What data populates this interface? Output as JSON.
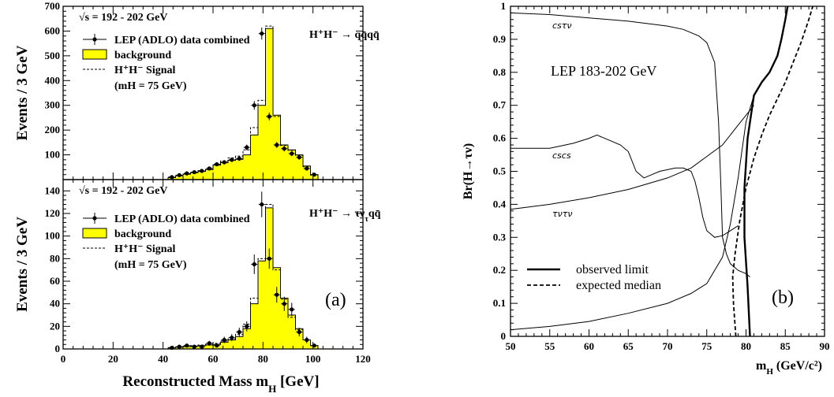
{
  "chart_data": [
    {
      "type": "bar",
      "panel": "top",
      "ylabel": "Events / 3 GeV",
      "ylim": [
        0,
        700
      ],
      "yticks": [
        0,
        100,
        200,
        300,
        400,
        500,
        600,
        700
      ],
      "xlim": [
        0,
        120
      ],
      "sqrt_s_label": "√s = 192 - 202 GeV",
      "channel_label": "H⁺H⁻ → qq̄qq̄",
      "legend": [
        "LEP (ADLO) data combined",
        "background",
        "H⁺H⁻ Signal",
        "(mH = 75 GeV)"
      ],
      "bins": [
        42,
        45,
        48,
        51,
        54,
        57,
        60,
        63,
        66,
        69,
        72,
        75,
        78,
        81,
        84,
        87,
        90,
        93,
        96,
        99
      ],
      "background": [
        8,
        15,
        22,
        28,
        33,
        40,
        58,
        68,
        78,
        82,
        100,
        180,
        300,
        610,
        260,
        140,
        120,
        100,
        55,
        20
      ],
      "signal": [
        10,
        16,
        24,
        30,
        36,
        45,
        62,
        75,
        88,
        95,
        120,
        210,
        320,
        620,
        255,
        138,
        118,
        98,
        52,
        18
      ],
      "data": [
        {
          "x": 43.5,
          "y": 10
        },
        {
          "x": 46.5,
          "y": 18
        },
        {
          "x": 49.5,
          "y": 25
        },
        {
          "x": 52.5,
          "y": 30
        },
        {
          "x": 55.5,
          "y": 35
        },
        {
          "x": 58.5,
          "y": 45
        },
        {
          "x": 61.5,
          "y": 62
        },
        {
          "x": 64.5,
          "y": 70
        },
        {
          "x": 67.5,
          "y": 80
        },
        {
          "x": 70.5,
          "y": 85
        },
        {
          "x": 73.5,
          "y": 130
        },
        {
          "x": 76.5,
          "y": 300
        },
        {
          "x": 79.5,
          "y": 590
        },
        {
          "x": 82.5,
          "y": 255
        },
        {
          "x": 85.5,
          "y": 140
        },
        {
          "x": 88.5,
          "y": 125
        },
        {
          "x": 91.5,
          "y": 105
        },
        {
          "x": 94.5,
          "y": 90
        },
        {
          "x": 97.5,
          "y": 45
        },
        {
          "x": 100.5,
          "y": 20
        }
      ]
    },
    {
      "type": "bar",
      "panel": "bottom",
      "ylabel": "Events / 3 GeV",
      "xlabel": "Reconstructed Mass m",
      "xlabel_sub": "H",
      "xlabel_unit": " [GeV]",
      "ylim": [
        0,
        150
      ],
      "yticks": [
        0,
        20,
        40,
        60,
        80,
        100,
        120,
        140
      ],
      "xlim": [
        0,
        120
      ],
      "xticks": [
        0,
        20,
        40,
        60,
        80,
        100,
        120
      ],
      "sqrt_s_label": "√s = 192 - 202 GeV",
      "channel_label": "H⁺H⁻ → τν",
      "channel_label_sub": "τ",
      "channel_label_tail": "qq̄",
      "legend": [
        "LEP (ADLO) data combined",
        "background",
        "H⁺H⁻ Signal",
        "(mH = 75 GeV)"
      ],
      "panel_tag": "(a)",
      "bins": [
        42,
        45,
        48,
        51,
        54,
        57,
        60,
        63,
        66,
        69,
        72,
        75,
        78,
        81,
        84,
        87,
        90,
        93,
        96,
        99
      ],
      "background": [
        1,
        1.5,
        2,
        2.5,
        3,
        3.5,
        4,
        6,
        8,
        11,
        18,
        40,
        78,
        125,
        72,
        45,
        30,
        18,
        8,
        3
      ],
      "signal": [
        1.2,
        1.8,
        2.3,
        3,
        3.5,
        4.2,
        5,
        7,
        9,
        13,
        22,
        45,
        80,
        128,
        70,
        44,
        28,
        17,
        8,
        3
      ],
      "data": [
        {
          "x": 43.5,
          "y": 1
        },
        {
          "x": 46.5,
          "y": 2
        },
        {
          "x": 49.5,
          "y": 3
        },
        {
          "x": 52.5,
          "y": 2
        },
        {
          "x": 55.5,
          "y": 2
        },
        {
          "x": 58.5,
          "y": 5
        },
        {
          "x": 61.5,
          "y": 3
        },
        {
          "x": 64.5,
          "y": 8
        },
        {
          "x": 67.5,
          "y": 10
        },
        {
          "x": 70.5,
          "y": 15
        },
        {
          "x": 73.5,
          "y": 20
        },
        {
          "x": 76.5,
          "y": 75
        },
        {
          "x": 79.5,
          "y": 128
        },
        {
          "x": 82.5,
          "y": 80
        },
        {
          "x": 85.5,
          "y": 48
        },
        {
          "x": 88.5,
          "y": 40
        },
        {
          "x": 91.5,
          "y": 35
        },
        {
          "x": 94.5,
          "y": 15
        },
        {
          "x": 97.5,
          "y": 8
        },
        {
          "x": 100.5,
          "y": 3
        }
      ]
    },
    {
      "type": "line",
      "panel": "right",
      "ylabel": "Br(H→τν)",
      "xlabel": "m",
      "xlabel_sub": "H",
      "xlabel_unit": " (GeV/c²)",
      "xlim": [
        50,
        90
      ],
      "ylim": [
        0,
        1
      ],
      "xticks": [
        50,
        55,
        60,
        65,
        70,
        75,
        80,
        85,
        90
      ],
      "yticks": [
        0,
        0.1,
        0.2,
        0.3,
        0.4,
        0.5,
        0.6,
        0.7,
        0.8,
        0.9,
        1
      ],
      "ytick_labels": [
        "0",
        "0.1",
        "0.2",
        "0.3",
        "0.4",
        "0.5",
        "0.6",
        "0.7",
        "0.8",
        "0.9",
        "1"
      ],
      "annotation": "LEP 183-202 GeV",
      "panel_tag": "(b)",
      "legend": [
        "observed limit",
        "expected median"
      ],
      "series": [
        {
          "label": "csτν",
          "points": [
            [
              50,
              0.98
            ],
            [
              55,
              0.975
            ],
            [
              60,
              0.965
            ],
            [
              65,
              0.955
            ],
            [
              70,
              0.94
            ],
            [
              72,
              0.93
            ],
            [
              74,
              0.91
            ],
            [
              75,
              0.89
            ],
            [
              76,
              0.83
            ],
            [
              76.5,
              0.65
            ],
            [
              76.8,
              0.45
            ],
            [
              77,
              0.3
            ],
            [
              77.5,
              0.25
            ],
            [
              78,
              0.22
            ],
            [
              79,
              0.2
            ],
            [
              80,
              0.19
            ],
            [
              80.5,
              0.18
            ]
          ]
        },
        {
          "label": "cscs",
          "points": [
            [
              50,
              0.57
            ],
            [
              55,
              0.57
            ],
            [
              58,
              0.585
            ],
            [
              60,
              0.6
            ],
            [
              61,
              0.61
            ],
            [
              62,
              0.6
            ],
            [
              64,
              0.58
            ],
            [
              65,
              0.56
            ],
            [
              66,
              0.5
            ],
            [
              67,
              0.48
            ],
            [
              68,
              0.49
            ],
            [
              69,
              0.5
            ],
            [
              71,
              0.51
            ],
            [
              72,
              0.51
            ],
            [
              73,
              0.5
            ],
            [
              73.5,
              0.47
            ],
            [
              74,
              0.42
            ],
            [
              74.5,
              0.36
            ],
            [
              75,
              0.32
            ],
            [
              76,
              0.3
            ],
            [
              77,
              0.305
            ],
            [
              78,
              0.32
            ],
            [
              79,
              0.335
            ]
          ]
        },
        {
          "label": "τντν",
          "points": [
            [
              50,
              0.385
            ],
            [
              55,
              0.4
            ],
            [
              60,
              0.42
            ],
            [
              65,
              0.445
            ],
            [
              70,
              0.48
            ],
            [
              73,
              0.51
            ],
            [
              75,
              0.545
            ],
            [
              77,
              0.58
            ],
            [
              78,
              0.61
            ],
            [
              79,
              0.64
            ],
            [
              80,
              0.67
            ],
            [
              81,
              0.7
            ]
          ]
        },
        {
          "label": "",
          "points": [
            [
              50,
              0.02
            ],
            [
              55,
              0.03
            ],
            [
              60,
              0.045
            ],
            [
              65,
              0.07
            ],
            [
              70,
              0.1
            ],
            [
              73,
              0.13
            ],
            [
              75,
              0.16
            ],
            [
              77,
              0.24
            ],
            [
              78,
              0.34
            ],
            [
              79,
              0.48
            ],
            [
              80,
              0.65
            ],
            [
              81,
              0.73
            ],
            [
              82,
              0.77
            ],
            [
              83,
              0.8
            ],
            [
              84,
              0.85
            ],
            [
              84.5,
              0.9
            ],
            [
              85,
              0.96
            ],
            [
              85.3,
              1.0
            ]
          ]
        }
      ],
      "observed_limit": [
        [
          80.5,
          0.0
        ],
        [
          80.2,
          0.15
        ],
        [
          79.8,
          0.3
        ],
        [
          79.8,
          0.45
        ],
        [
          80.2,
          0.6
        ],
        [
          81,
          0.73
        ],
        [
          82,
          0.77
        ],
        [
          83,
          0.8
        ],
        [
          84,
          0.85
        ],
        [
          84.5,
          0.9
        ],
        [
          85,
          0.96
        ],
        [
          85.3,
          1.0
        ]
      ],
      "expected_median": [
        [
          78.7,
          0.0
        ],
        [
          78.4,
          0.1
        ],
        [
          78.3,
          0.18
        ],
        [
          78.6,
          0.25
        ],
        [
          79.2,
          0.35
        ],
        [
          80,
          0.45
        ],
        [
          81,
          0.54
        ],
        [
          82,
          0.61
        ],
        [
          83,
          0.67
        ],
        [
          84,
          0.72
        ],
        [
          85,
          0.77
        ],
        [
          86,
          0.83
        ],
        [
          87,
          0.89
        ],
        [
          88,
          0.96
        ],
        [
          88.5,
          1.0
        ]
      ]
    }
  ]
}
